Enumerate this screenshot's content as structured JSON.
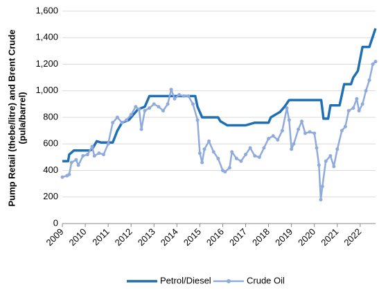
{
  "chart_data": {
    "type": "line",
    "y_label": [
      "Pump Retail (thebe/litre) and Brent Crude",
      "(pula/barrel)"
    ],
    "xlim": [
      2009,
      2022.67
    ],
    "xticks": [
      2009,
      2010,
      2011,
      2012,
      2013,
      2014,
      2015,
      2016,
      2017,
      2018,
      2019,
      2020,
      2021,
      2022
    ],
    "ylim": [
      0,
      1600
    ],
    "yticks": [
      0,
      200,
      400,
      600,
      800,
      {
        "value": 1000,
        "label": "1,000"
      },
      {
        "value": 1200,
        "label": "1,200"
      },
      {
        "value": 1400,
        "label": "1,400"
      },
      {
        "value": 1600,
        "label": "1,600"
      }
    ],
    "grid": true,
    "legend": "bottom",
    "series": [
      {
        "name": "Petrol/Diesel",
        "color": "#1f6fb5",
        "markers": false,
        "x": [
          2009.0,
          2009.25,
          2009.3,
          2009.5,
          2010.2,
          2010.3,
          2010.5,
          2010.7,
          2011.2,
          2011.4,
          2011.6,
          2011.9,
          2012.0,
          2012.3,
          2012.6,
          2012.8,
          2014.8,
          2014.9,
          2015.1,
          2015.8,
          2015.9,
          2016.2,
          2017.0,
          2017.4,
          2018.0,
          2018.1,
          2018.5,
          2018.7,
          2018.9,
          2020.3,
          2020.4,
          2020.6,
          2020.7,
          2021.1,
          2021.3,
          2021.6,
          2021.7,
          2021.9,
          2022.1,
          2022.4,
          2022.67
        ],
        "values": [
          470,
          470,
          520,
          550,
          550,
          560,
          620,
          610,
          610,
          700,
          760,
          780,
          800,
          860,
          880,
          960,
          960,
          880,
          800,
          800,
          770,
          740,
          740,
          760,
          760,
          800,
          840,
          880,
          930,
          930,
          790,
          790,
          890,
          890,
          1050,
          1050,
          1100,
          1150,
          1330,
          1330,
          1470
        ]
      },
      {
        "name": "Crude Oil",
        "color": "#8faadc",
        "markers": true,
        "x": [
          2009.0,
          2009.2,
          2009.3,
          2009.4,
          2009.6,
          2009.7,
          2009.9,
          2010.1,
          2010.3,
          2010.4,
          2010.6,
          2010.8,
          2011.0,
          2011.2,
          2011.4,
          2011.6,
          2011.8,
          2012.0,
          2012.2,
          2012.35,
          2012.45,
          2012.6,
          2012.8,
          2013.0,
          2013.2,
          2013.4,
          2013.6,
          2013.75,
          2013.9,
          2014.1,
          2014.3,
          2014.5,
          2014.7,
          2014.9,
          2015.0,
          2015.1,
          2015.2,
          2015.4,
          2015.6,
          2015.8,
          2016.0,
          2016.1,
          2016.3,
          2016.4,
          2016.6,
          2016.8,
          2017.0,
          2017.2,
          2017.4,
          2017.6,
          2017.8,
          2018.0,
          2018.2,
          2018.4,
          2018.6,
          2018.8,
          2018.9,
          2019.0,
          2019.1,
          2019.3,
          2019.45,
          2019.6,
          2019.8,
          2020.0,
          2020.1,
          2020.2,
          2020.28,
          2020.35,
          2020.5,
          2020.7,
          2020.85,
          2021.0,
          2021.2,
          2021.35,
          2021.5,
          2021.7,
          2021.85,
          2021.95,
          2022.1,
          2022.25,
          2022.4,
          2022.55,
          2022.67
        ],
        "values": [
          350,
          360,
          370,
          460,
          480,
          440,
          510,
          520,
          580,
          510,
          530,
          520,
          600,
          760,
          800,
          760,
          780,
          820,
          880,
          860,
          710,
          850,
          870,
          900,
          880,
          850,
          900,
          1010,
          940,
          970,
          960,
          960,
          900,
          780,
          530,
          460,
          560,
          620,
          540,
          490,
          400,
          390,
          420,
          540,
          490,
          470,
          520,
          570,
          510,
          500,
          570,
          640,
          660,
          630,
          700,
          870,
          780,
          560,
          600,
          710,
          770,
          680,
          690,
          680,
          570,
          440,
          180,
          280,
          470,
          510,
          430,
          560,
          700,
          730,
          850,
          870,
          940,
          850,
          900,
          1000,
          1080,
          1200,
          1220
        ]
      }
    ]
  }
}
